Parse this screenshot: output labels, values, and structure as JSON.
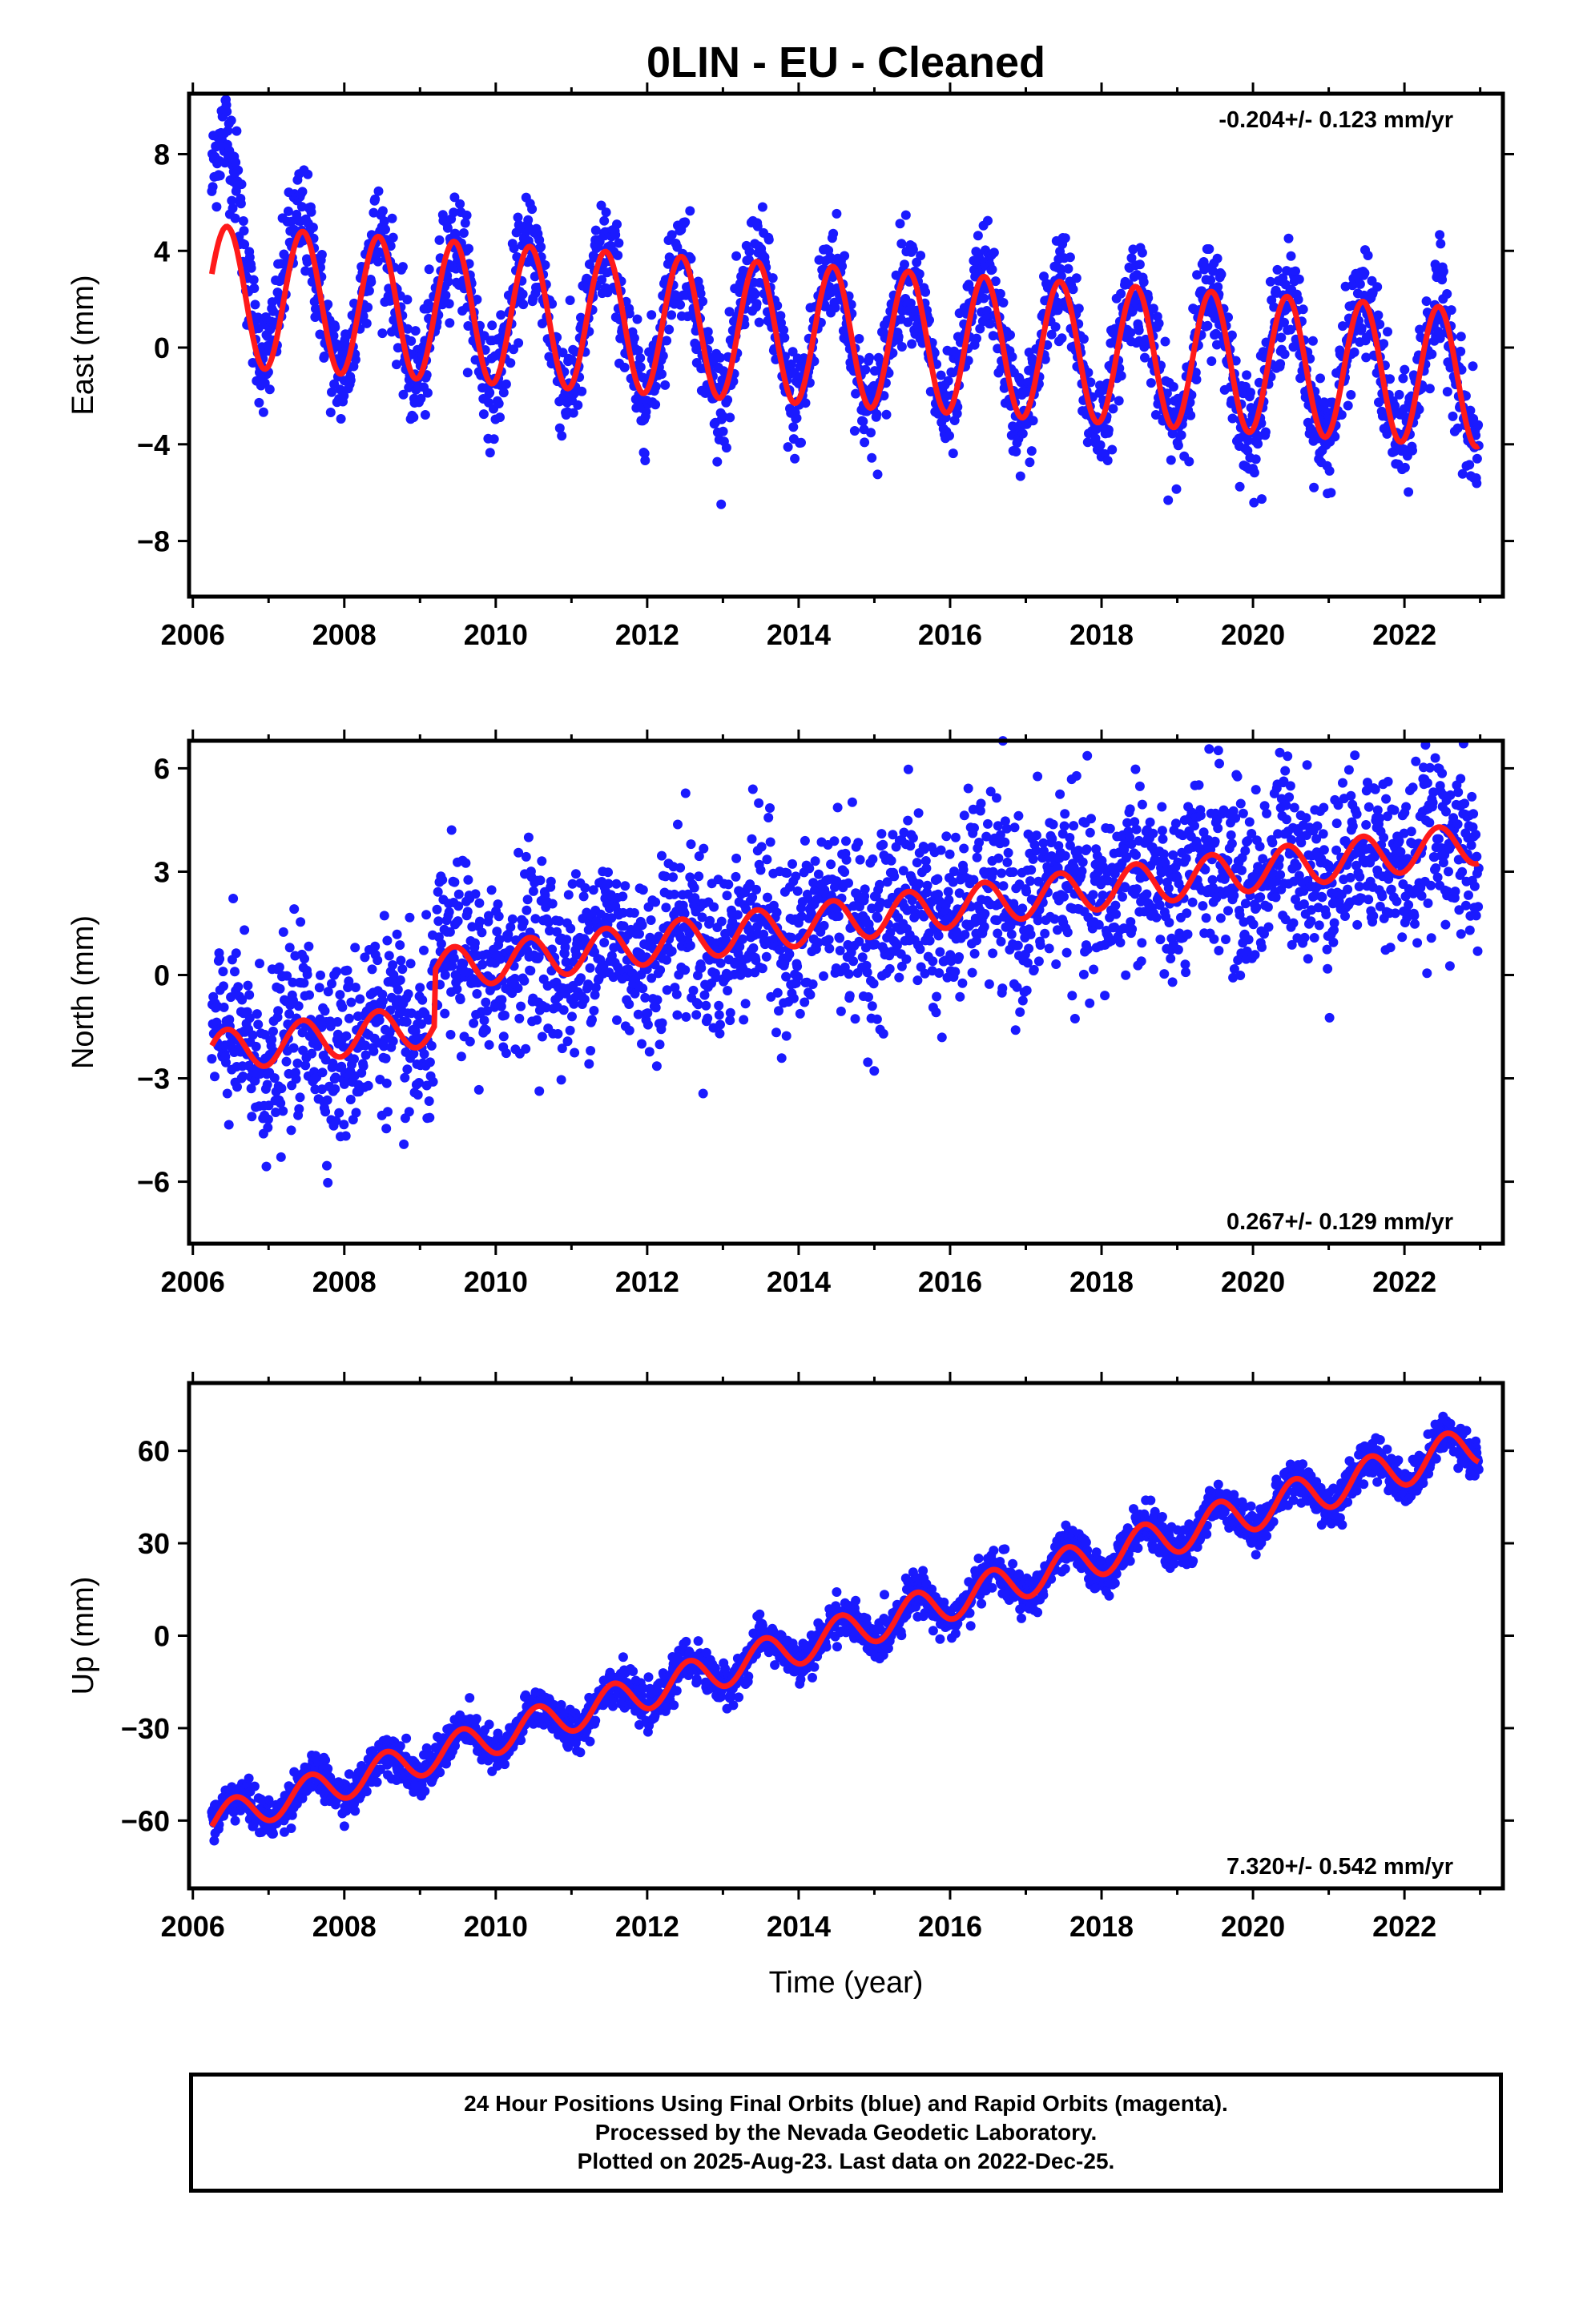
{
  "title": "0LIN  - EU - Cleaned",
  "colors": {
    "data": "#1a1aff",
    "model": "#ff1a1a",
    "frame": "#000000"
  },
  "chart_data": [
    {
      "type": "scatter",
      "name": "east",
      "ylabel": "East (mm)",
      "xlabel": "",
      "xlim": [
        2005.95,
        2023.3
      ],
      "ylim": [
        -10.3,
        10.5
      ],
      "x_ticks": [
        2006,
        2008,
        2010,
        2012,
        2014,
        2016,
        2018,
        2020,
        2022
      ],
      "y_ticks": [
        -8,
        -4,
        0,
        4,
        8
      ],
      "rate_text": "-0.204+/- 0.123 mm/yr",
      "rate_position": "top-right",
      "data_range": [
        2006.25,
        2022.98
      ],
      "model": {
        "rate": -0.204,
        "offset_2006": 2.2,
        "amplitude_start": 2.9,
        "amplitude_end": 2.85,
        "phase_peak": 0.45,
        "noise": 1.1,
        "early_offset": 4.5,
        "early_until": 2007.6
      }
    },
    {
      "type": "scatter",
      "name": "north",
      "ylabel": "North (mm)",
      "xlabel": "",
      "xlim": [
        2005.95,
        2023.3
      ],
      "ylim": [
        -7.8,
        6.8
      ],
      "x_ticks": [
        2006,
        2008,
        2010,
        2012,
        2014,
        2016,
        2018,
        2020,
        2022
      ],
      "y_ticks": [
        -6,
        -3,
        0,
        3,
        6
      ],
      "rate_text": "0.267+/- 0.129 mm/yr",
      "rate_position": "bottom-right",
      "data_range": [
        2006.25,
        2022.98
      ],
      "model": {
        "rate": 0.267,
        "offset_2006": -2.3,
        "amplitude_start": 0.6,
        "amplitude_end": 0.6,
        "phase_peak": 0.45,
        "noise": 1.3,
        "step_at": 2009.2,
        "step": 1.6
      }
    },
    {
      "type": "scatter",
      "name": "up",
      "ylabel": "Up (mm)",
      "xlabel": "Time (year)",
      "xlim": [
        2005.95,
        2023.3
      ],
      "ylim": [
        -82,
        82
      ],
      "x_ticks": [
        2006,
        2008,
        2010,
        2012,
        2014,
        2016,
        2018,
        2020,
        2022
      ],
      "y_ticks": [
        -60,
        -30,
        0,
        30,
        60
      ],
      "rate_text": "7.320+/- 0.542 mm/yr",
      "rate_position": "bottom-right",
      "data_range": [
        2006.25,
        2022.98
      ],
      "model": {
        "rate": 7.32,
        "offset_2006": -62,
        "amplitude_start": 5.5,
        "amplitude_end": 6.5,
        "phase_peak": 0.55,
        "noise": 3.2
      }
    }
  ],
  "caption": [
    "24 Hour Positions Using Final Orbits (blue) and Rapid Orbits (magenta).",
    "Processed by the Nevada Geodetic Laboratory.",
    "Plotted on 2025-Aug-23. Last data on 2022-Dec-25."
  ]
}
